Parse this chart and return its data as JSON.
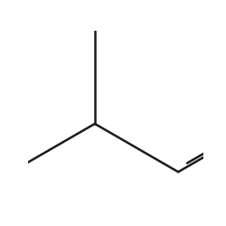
{
  "background_color": "#ffffff",
  "bond_color": "#1a1a1a",
  "nitrogen_color": "#0000ff",
  "fluorine_color": "#9900cc",
  "line_width": 1.8,
  "figsize": [
    2.5,
    2.5
  ],
  "dpi": 100,
  "scale": 0.55,
  "ox": 0.38,
  "oy": 0.52
}
